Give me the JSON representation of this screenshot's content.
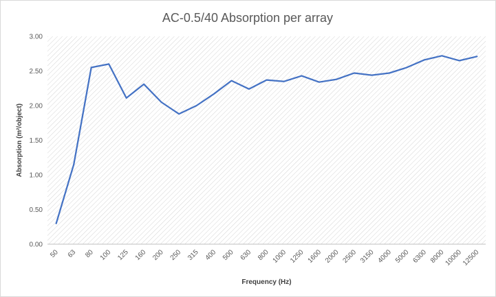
{
  "chart_data": {
    "type": "line",
    "title": "AC-0.5/40 Absorption per array",
    "xlabel": "Frequency (Hz)",
    "ylabel": "Absorption (m²/object)",
    "ylim": [
      0,
      3
    ],
    "y_ticks": [
      "0.00",
      "0.50",
      "1.00",
      "1.50",
      "2.00",
      "2.50",
      "3.00"
    ],
    "grid": "none",
    "plot_background": "diagonal-hatch",
    "line_color": "#4472C4",
    "categories": [
      "50",
      "63",
      "80",
      "100",
      "125",
      "160",
      "200",
      "250",
      "315",
      "400",
      "500",
      "630",
      "800",
      "1000",
      "1250",
      "1600",
      "2000",
      "2500",
      "3150",
      "4000",
      "5000",
      "6300",
      "8000",
      "10000",
      "12500"
    ],
    "series": [
      {
        "values": [
          0.3,
          1.15,
          2.55,
          2.6,
          2.11,
          2.31,
          2.05,
          1.88,
          2.0,
          2.17,
          2.36,
          2.24,
          2.37,
          2.35,
          2.43,
          2.34,
          2.38,
          2.47,
          2.44,
          2.47,
          2.55,
          2.66,
          2.72,
          2.65,
          2.71
        ]
      }
    ]
  }
}
